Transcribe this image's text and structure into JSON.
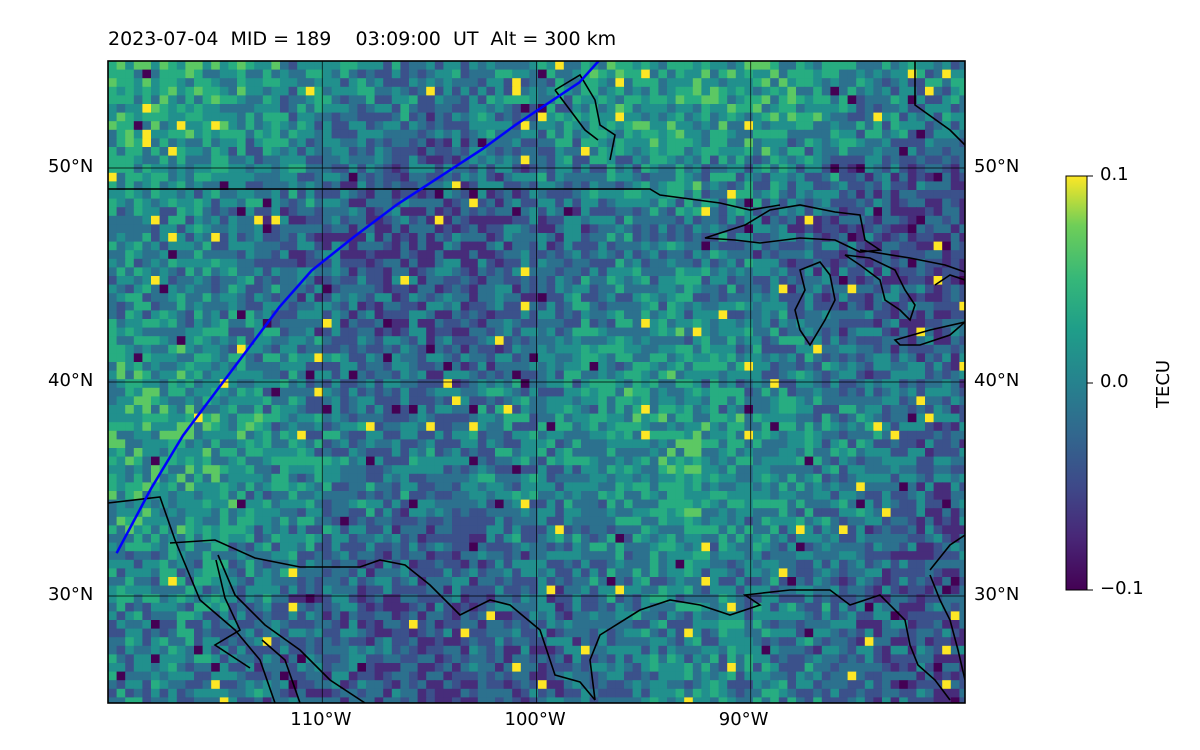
{
  "title": "2023-07-04  MID = 189    03:09:00  UT  Alt = 300 km",
  "map": {
    "lon_range": [
      -120,
      -80
    ],
    "lat_range": [
      25,
      55
    ],
    "lon_ticks": [
      {
        "value": -110,
        "label": "110°W"
      },
      {
        "value": -100,
        "label": "100°W"
      },
      {
        "value": -90,
        "label": "90°W"
      }
    ],
    "lat_ticks": [
      {
        "value": 50,
        "label": "50°N"
      },
      {
        "value": 40,
        "label": "40°N"
      },
      {
        "value": 30,
        "label": "30°N"
      }
    ],
    "gridlines": true,
    "track_color": "#0000ff",
    "track": [
      [
        -119.6,
        32
      ],
      [
        -118,
        35
      ],
      [
        -116.5,
        37.5
      ],
      [
        -115,
        39.5
      ],
      [
        -113.5,
        41.5
      ],
      [
        -112,
        43.5
      ],
      [
        -110.5,
        45.2
      ],
      [
        -108.5,
        46.8
      ],
      [
        -106.5,
        48.3
      ],
      [
        -104.5,
        49.6
      ],
      [
        -102.5,
        50.9
      ],
      [
        -101,
        52
      ],
      [
        -99.5,
        53
      ],
      [
        -98,
        54
      ],
      [
        -97.1,
        55
      ]
    ]
  },
  "colorbar": {
    "label": "TECU",
    "min": -0.1,
    "max": 0.1,
    "ticks": [
      {
        "value": 0.1,
        "label": "0.1"
      },
      {
        "value": 0.0,
        "label": "0.0"
      },
      {
        "value": -0.1,
        "label": "−0.1"
      }
    ],
    "colormap": "viridis"
  },
  "chart_data": {
    "type": "heatmap",
    "title": "2023-07-04  MID = 189    03:09:00  UT  Alt = 300 km",
    "xlabel": "",
    "ylabel": "",
    "xlim": [
      -120,
      -80
    ],
    "ylim": [
      25,
      55
    ],
    "colorbar_label": "TECU",
    "value_range": [
      -0.1,
      0.1
    ]
  }
}
